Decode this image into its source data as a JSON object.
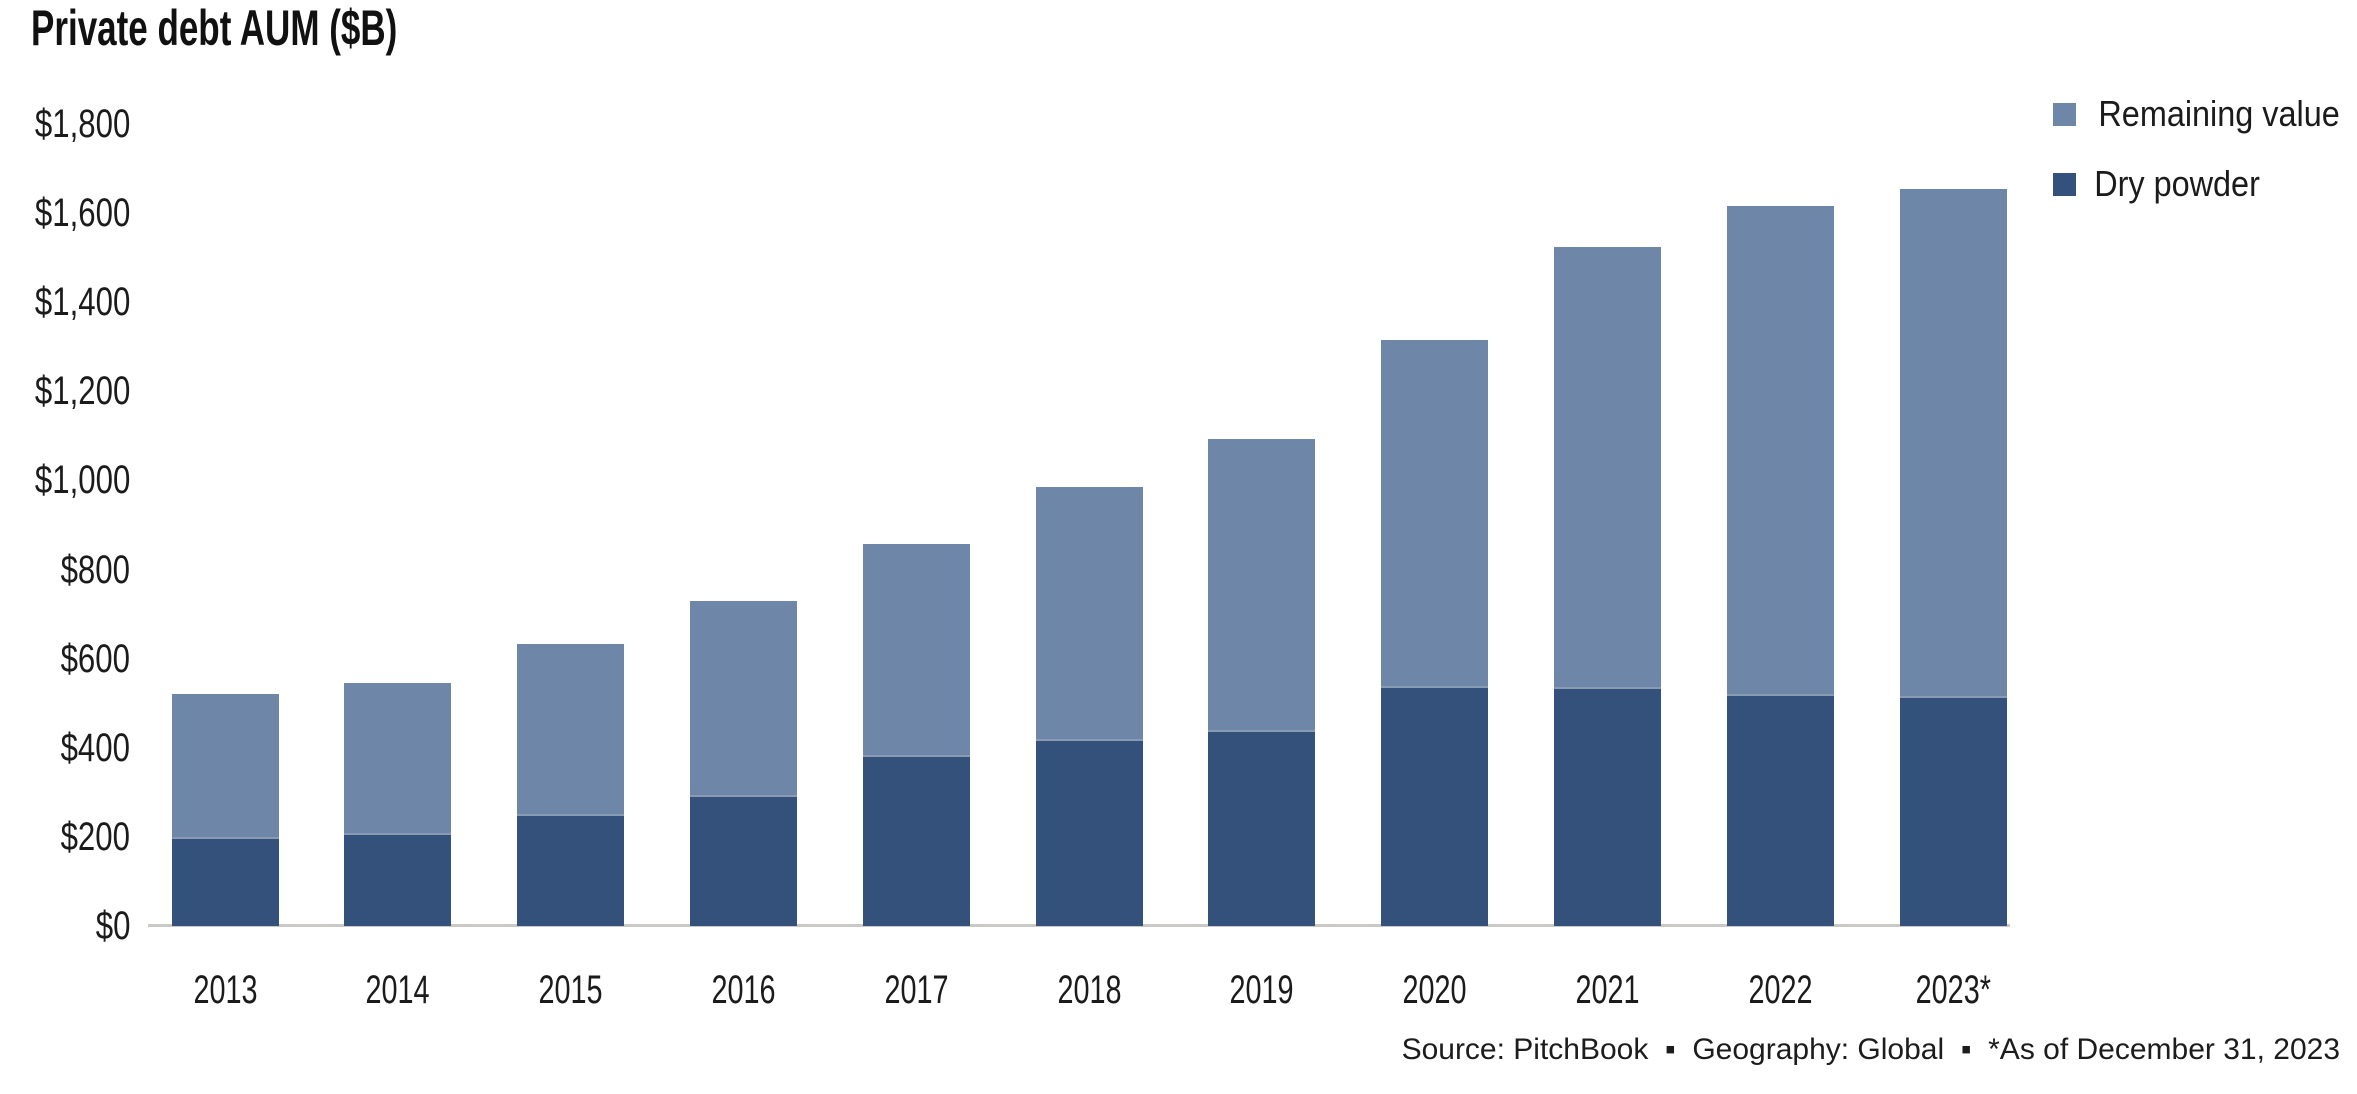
{
  "title": "Private debt AUM ($B)",
  "chart_data": {
    "type": "bar",
    "stacked": true,
    "title": "Private debt AUM ($B)",
    "categories": [
      "2013",
      "2014",
      "2015",
      "2016",
      "2017",
      "2018",
      "2019",
      "2020",
      "2021",
      "2022",
      "2023*"
    ],
    "series": [
      {
        "name": "Dry powder",
        "color": "#34517c",
        "values": [
          200,
          209,
          251,
          294,
          384,
          420,
          440,
          539,
          537,
          521,
          516
        ]
      },
      {
        "name": "Remaining value",
        "color": "#6e86a7",
        "values": [
          321,
          336,
          382,
          435,
          473,
          565,
          653,
          776,
          987,
          1095,
          1138
        ]
      }
    ],
    "totals": [
      521,
      545,
      633,
      729,
      857,
      985,
      1093,
      1315,
      1524,
      1616,
      1654
    ],
    "xlabel": "",
    "ylabel": "",
    "ylim": [
      0,
      1800
    ],
    "ytick_step": 200,
    "ytick_labels": [
      "$1,800",
      "$1,600",
      "$1,400",
      "$1,200",
      "$1,000",
      "$800",
      "$600",
      "$400",
      "$200",
      "$0"
    ],
    "grid": false,
    "legend_position": "top-right"
  },
  "legend": {
    "items": [
      {
        "label": "Remaining value",
        "color": "#6e86a7"
      },
      {
        "label": "Dry powder",
        "color": "#34517c"
      }
    ]
  },
  "footer": {
    "text": "Source: PitchBook  ▪  Geography: Global  ▪  *As of December 31, 2023"
  }
}
